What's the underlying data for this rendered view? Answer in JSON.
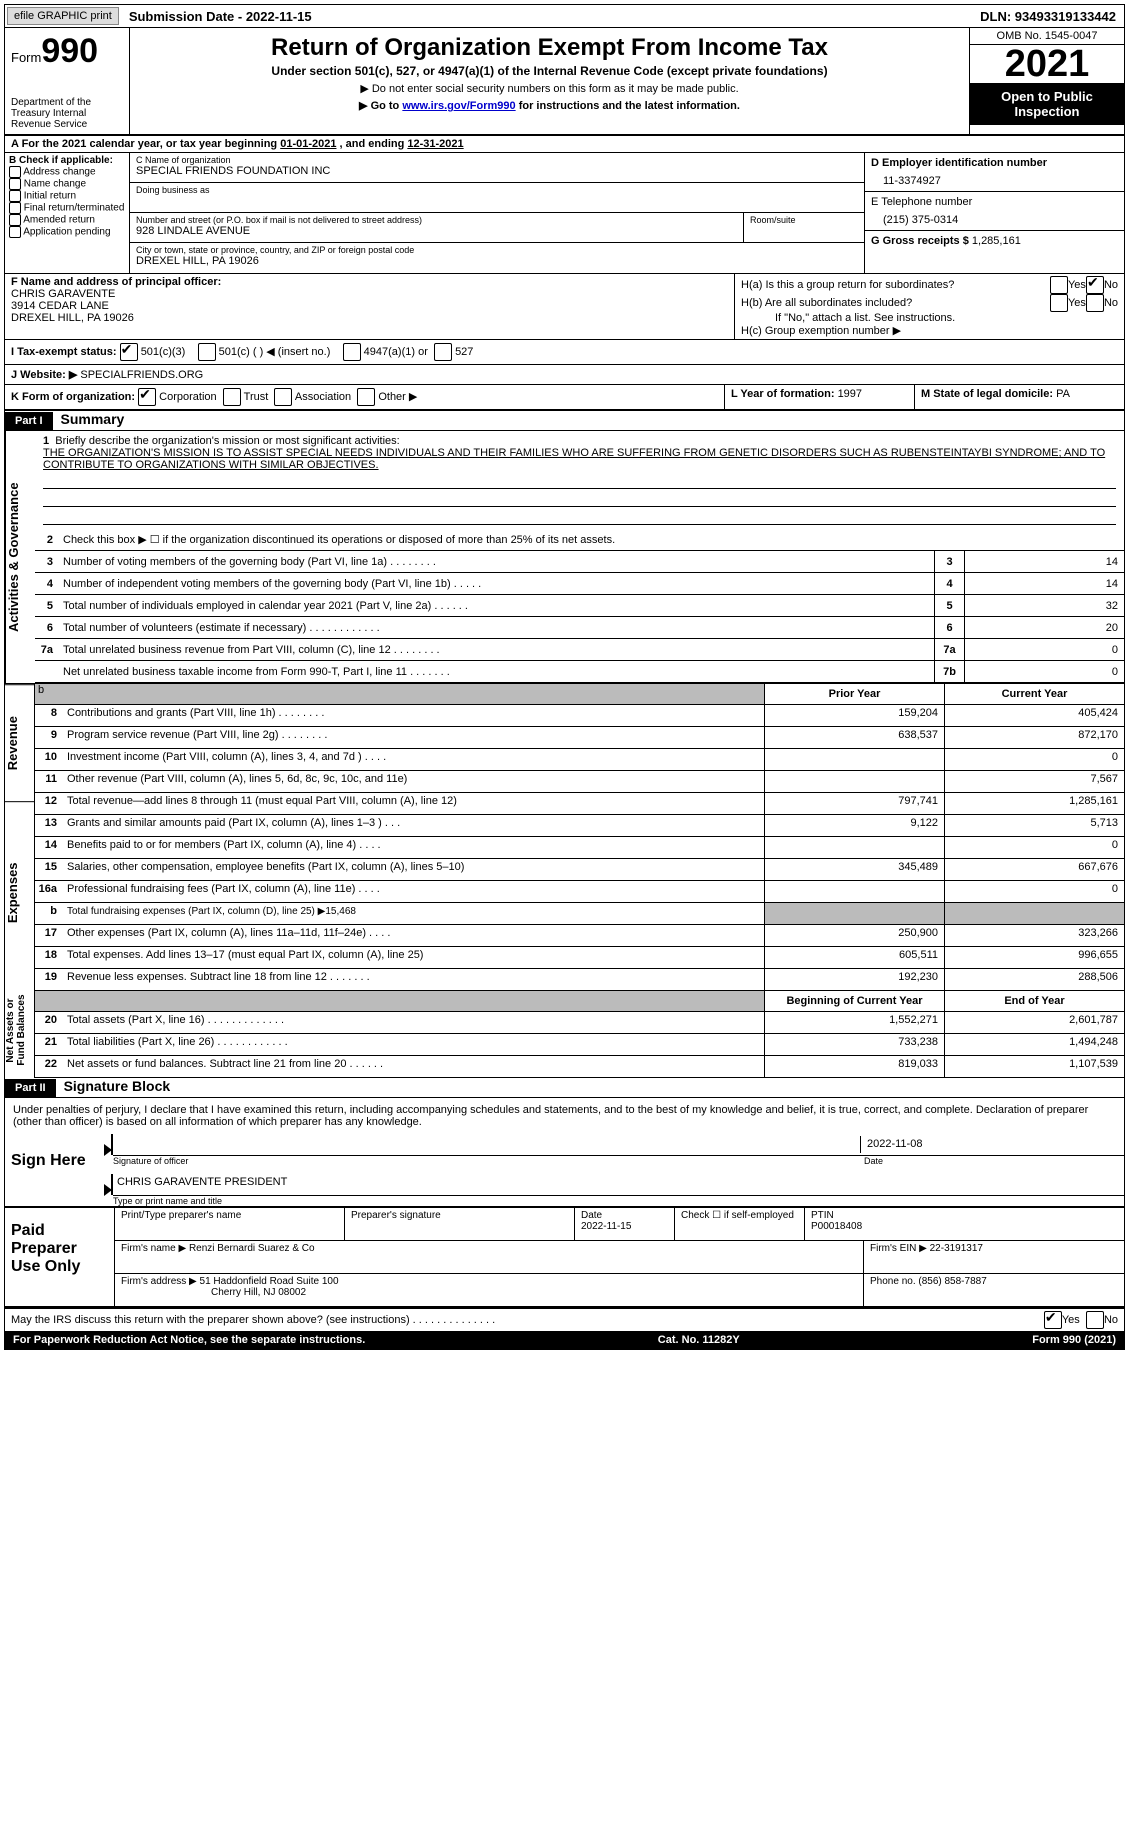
{
  "topbar": {
    "efile": "efile GRAPHIC print",
    "submission": "Submission Date - 2022-11-15",
    "dln": "DLN: 93493319133442"
  },
  "header": {
    "form_label": "Form",
    "form_num": "990",
    "dept": "Department of the Treasury Internal Revenue Service",
    "title": "Return of Organization Exempt From Income Tax",
    "subtitle": "Under section 501(c), 527, or 4947(a)(1) of the Internal Revenue Code (except private foundations)",
    "note1": "▶ Do not enter social security numbers on this form as it may be made public.",
    "note2_pre": "▶ Go to ",
    "note2_link": "www.irs.gov/Form990",
    "note2_post": " for instructions and the latest information.",
    "omb": "OMB No. 1545-0047",
    "year": "2021",
    "inspect": "Open to Public Inspection"
  },
  "rowA": {
    "pre": "A For the 2021 calendar year, or tax year beginning ",
    "begin": "01-01-2021",
    "mid": " , and ending ",
    "end": "12-31-2021"
  },
  "colB": {
    "label": "B Check if applicable:",
    "opts": [
      "Address change",
      "Name change",
      "Initial return",
      "Final return/terminated",
      "Amended return",
      "Application pending"
    ]
  },
  "colC": {
    "name_lbl": "C Name of organization",
    "name": "SPECIAL FRIENDS FOUNDATION INC",
    "dba_lbl": "Doing business as",
    "dba": "",
    "street_lbl": "Number and street (or P.O. box if mail is not delivered to street address)",
    "room_lbl": "Room/suite",
    "street": "928 LINDALE AVENUE",
    "city_lbl": "City or town, state or province, country, and ZIP or foreign postal code",
    "city": "DREXEL HILL, PA  19026"
  },
  "colD": {
    "ein_lbl": "D Employer identification number",
    "ein": "11-3374927",
    "tel_lbl": "E Telephone number",
    "tel": "(215) 375-0314",
    "gross_lbl": "G Gross receipts $ ",
    "gross": "1,285,161"
  },
  "colF": {
    "lbl": "F Name and address of principal officer:",
    "name": "CHRIS GARAVENTE",
    "addr1": "3914 CEDAR LANE",
    "addr2": "DREXEL HILL, PA  19026"
  },
  "colH": {
    "ha": "H(a)  Is this a group return for subordinates?",
    "hb": "H(b)  Are all subordinates included?",
    "hb_note": "If \"No,\" attach a list. See instructions.",
    "hc": "H(c)  Group exemption number ▶",
    "yes": "Yes",
    "no": "No"
  },
  "rowI": {
    "lbl": "I   Tax-exempt status:",
    "o1": "501(c)(3)",
    "o2": "501(c) (  ) ◀ (insert no.)",
    "o3": "4947(a)(1) or",
    "o4": "527"
  },
  "rowJ": {
    "lbl": "J   Website: ▶",
    "val": " SPECIALFRIENDS.ORG"
  },
  "rowK": {
    "lbl": "K Form of organization:",
    "o1": "Corporation",
    "o2": "Trust",
    "o3": "Association",
    "o4": "Other ▶"
  },
  "rowL": {
    "lbl": "L Year of formation: ",
    "val": "1997"
  },
  "rowM": {
    "lbl": "M State of legal domicile: ",
    "val": "PA"
  },
  "parts": {
    "p1": "Part I",
    "p1t": "Summary",
    "p2": "Part II",
    "p2t": "Signature Block"
  },
  "summary": {
    "l1_lbl": "Briefly describe the organization's mission or most significant activities:",
    "l1": "THE ORGANIZATION'S MISSION IS TO ASSIST SPECIAL NEEDS INDIVIDUALS AND THEIR FAMILIES WHO ARE SUFFERING FROM GENETIC DISORDERS SUCH AS RUBENSTEINTAYBI SYNDROME; AND TO CONTRIBUTE TO ORGANIZATIONS WITH SIMILAR OBJECTIVES.",
    "l2": "Check this box ▶ ☐  if the organization discontinued its operations or disposed of more than 25% of its net assets.",
    "lines": [
      {
        "n": "3",
        "t": "Number of voting members of the governing body (Part VI, line 1a)  .   .   .   .   .   .   .   .",
        "box": "3",
        "v": "14"
      },
      {
        "n": "4",
        "t": "Number of independent voting members of the governing body (Part VI, line 1b)  .   .   .   .   .",
        "box": "4",
        "v": "14"
      },
      {
        "n": "5",
        "t": "Total number of individuals employed in calendar year 2021 (Part V, line 2a)  .   .   .   .   .   .",
        "box": "5",
        "v": "32"
      },
      {
        "n": "6",
        "t": "Total number of volunteers (estimate if necessary)   .   .   .   .   .   .   .   .   .   .   .   .",
        "box": "6",
        "v": "20"
      },
      {
        "n": "7a",
        "t": "Total unrelated business revenue from Part VIII, column (C), line 12   .   .   .   .   .   .   .   .",
        "box": "7a",
        "v": "0"
      },
      {
        "n": "",
        "t": "Net unrelated business taxable income from Form 990-T, Part I, line 11   .   .   .   .   .   .   .",
        "box": "7b",
        "v": "0"
      }
    ],
    "hdr_prior": "Prior Year",
    "hdr_curr": "Current Year",
    "hdr_beg": "Beginning of Current Year",
    "hdr_end": "End of Year",
    "revenue": [
      {
        "n": "8",
        "t": "Contributions and grants (Part VIII, line 1h)   .   .   .   .   .   .   .   .",
        "v1": "159,204",
        "v2": "405,424"
      },
      {
        "n": "9",
        "t": "Program service revenue (Part VIII, line 2g)   .   .   .   .   .   .   .   .",
        "v1": "638,537",
        "v2": "872,170"
      },
      {
        "n": "10",
        "t": "Investment income (Part VIII, column (A), lines 3, 4, and 7d )   .   .   .   .",
        "v1": "",
        "v2": "0"
      },
      {
        "n": "11",
        "t": "Other revenue (Part VIII, column (A), lines 5, 6d, 8c, 9c, 10c, and 11e)",
        "v1": "",
        "v2": "7,567"
      },
      {
        "n": "12",
        "t": "Total revenue—add lines 8 through 11 (must equal Part VIII, column (A), line 12)",
        "v1": "797,741",
        "v2": "1,285,161"
      }
    ],
    "expenses": [
      {
        "n": "13",
        "t": "Grants and similar amounts paid (Part IX, column (A), lines 1–3 )   .   .   .",
        "v1": "9,122",
        "v2": "5,713"
      },
      {
        "n": "14",
        "t": "Benefits paid to or for members (Part IX, column (A), line 4)   .   .   .   .",
        "v1": "",
        "v2": "0"
      },
      {
        "n": "15",
        "t": "Salaries, other compensation, employee benefits (Part IX, column (A), lines 5–10)",
        "v1": "345,489",
        "v2": "667,676"
      },
      {
        "n": "16a",
        "t": "Professional fundraising fees (Part IX, column (A), line 11e)   .   .   .   .",
        "v1": "",
        "v2": "0"
      },
      {
        "n": "b",
        "t": "Total fundraising expenses (Part IX, column (D), line 25) ▶15,468",
        "shade": true
      },
      {
        "n": "17",
        "t": "Other expenses (Part IX, column (A), lines 11a–11d, 11f–24e)   .   .   .   .",
        "v1": "250,900",
        "v2": "323,266"
      },
      {
        "n": "18",
        "t": "Total expenses. Add lines 13–17 (must equal Part IX, column (A), line 25)",
        "v1": "605,511",
        "v2": "996,655"
      },
      {
        "n": "19",
        "t": "Revenue less expenses. Subtract line 18 from line 12  .   .   .   .   .   .   .",
        "v1": "192,230",
        "v2": "288,506"
      }
    ],
    "netassets": [
      {
        "n": "20",
        "t": "Total assets (Part X, line 16)  .   .   .   .   .   .   .   .   .   .   .   .   .",
        "v1": "1,552,271",
        "v2": "2,601,787"
      },
      {
        "n": "21",
        "t": "Total liabilities (Part X, line 26)  .   .   .   .   .   .   .   .   .   .   .   .",
        "v1": "733,238",
        "v2": "1,494,248"
      },
      {
        "n": "22",
        "t": "Net assets or fund balances. Subtract line 21 from line 20  .   .   .   .   .   .",
        "v1": "819,033",
        "v2": "1,107,539"
      }
    ],
    "vtabs": {
      "ag": "Activities & Governance",
      "rev": "Revenue",
      "exp": "Expenses",
      "na": "Net Assets or Fund Balances"
    },
    "b_label": "b"
  },
  "sig": {
    "penalty": "Under penalties of perjury, I declare that I have examined this return, including accompanying schedules and statements, and to the best of my knowledge and belief, it is true, correct, and complete. Declaration of preparer (other than officer) is based on all information of which preparer has any knowledge.",
    "sign_here": "Sign Here",
    "sig_officer_lbl": "Signature of officer",
    "sig_date": "2022-11-08",
    "date_lbl": "Date",
    "officer_name": "CHRIS GARAVENTE  PRESIDENT",
    "type_lbl": "Type or print name and title"
  },
  "prep": {
    "side": "Paid Preparer Use Only",
    "pname_lbl": "Print/Type preparer's name",
    "pname": "",
    "psig_lbl": "Preparer's signature",
    "psig": "",
    "pdate_lbl": "Date",
    "pdate": "2022-11-15",
    "self_lbl": "Check ☐ if self-employed",
    "ptin_lbl": "PTIN",
    "ptin": "P00018408",
    "firm_name_lbl": "Firm's name    ▶ ",
    "firm_name": "Renzi Bernardi Suarez & Co",
    "firm_ein_lbl": "Firm's EIN ▶ ",
    "firm_ein": "22-3191317",
    "firm_addr_lbl": "Firm's address ▶ ",
    "firm_addr1": "51 Haddonfield Road Suite 100",
    "firm_addr2": "Cherry Hill, NJ  08002",
    "phone_lbl": "Phone no. ",
    "phone": "(856) 858-7887"
  },
  "footer": {
    "discuss": "May the IRS discuss this return with the preparer shown above? (see instructions)   .   .   .   .   .   .   .   .   .   .   .   .   .   .",
    "yes": "Yes",
    "no": "No",
    "pra": "For Paperwork Reduction Act Notice, see the separate instructions.",
    "cat": "Cat. No. 11282Y",
    "form": "Form 990 (2021)"
  },
  "colors": {
    "black": "#000000",
    "shade": "#bbbbbb",
    "link": "#0000cc"
  }
}
